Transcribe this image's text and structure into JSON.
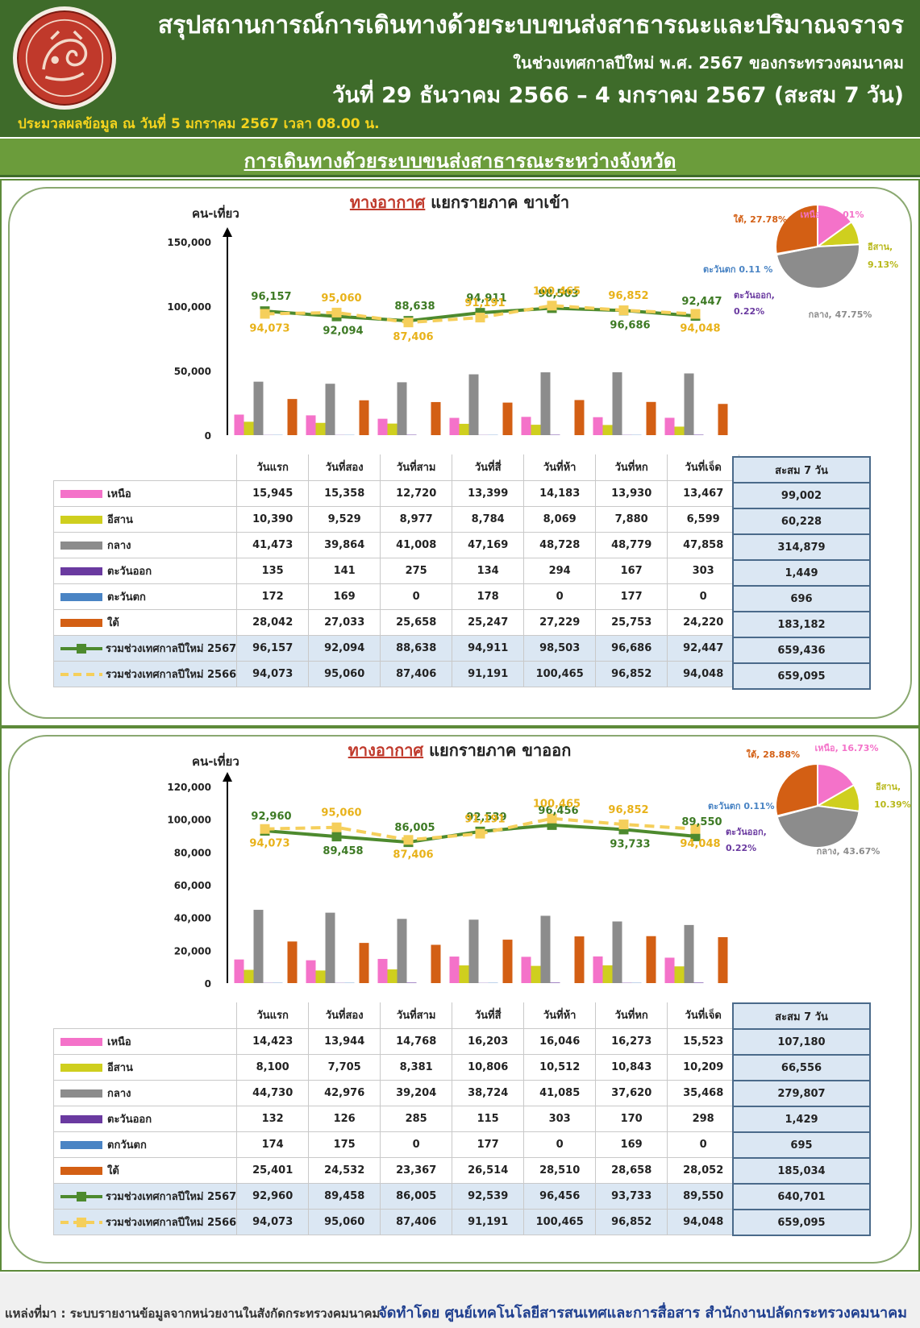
{
  "header": {
    "title": "สรุปสถานการณ์การเดินทางด้วยระบบขนส่งสาธารณะและปริมาณจราจร",
    "subtitle": "ในช่วงเทศกาลปีใหม่ พ.ศ. 2567 ของกระทรวงคมนาคม",
    "date_range": "วันที่ 29 ธันวาคม 2566 – 4 มกราคม 2567 (สะสม 7 วัน)",
    "processed": "ประมวลผลข้อมูล ณ วันที่  5 มกราคม 2567 เวลา 08.00 น."
  },
  "band": {
    "title": "การเดินทางด้วยระบบขนส่งสาธารณะระหว่างจังหวัด"
  },
  "colors": {
    "north": "#f472c9",
    "northeast": "#cfcf1e",
    "central": "#8c8c8c",
    "east": "#6a3aa0",
    "west": "#4a84c4",
    "south": "#d35f14",
    "line2567": "#4d8a2e",
    "line2566": "#f5cf5b"
  },
  "panels": [
    {
      "title_red": "ทางอากาศ",
      "title_rest": " แยกรายภาค ขาเข้า",
      "unit": "คน-เที่ยว",
      "days": [
        "วันแรก",
        "วันที่สอง",
        "วันที่สาม",
        "วันที่สี่",
        "วันที่ห้า",
        "วันที่หก",
        "วันที่เจ็ด"
      ],
      "sum_header": "สะสม 7 วัน",
      "rows": [
        {
          "label": "เหนือ",
          "key": "north",
          "values": [
            "15,945",
            "15,358",
            "12,720",
            "13,399",
            "14,183",
            "13,930",
            "13,467"
          ],
          "sum": "99,002"
        },
        {
          "label": "อีสาน",
          "key": "northeast",
          "values": [
            "10,390",
            "9,529",
            "8,977",
            "8,784",
            "8,069",
            "7,880",
            "6,599"
          ],
          "sum": "60,228"
        },
        {
          "label": "กลาง",
          "key": "central",
          "values": [
            "41,473",
            "39,864",
            "41,008",
            "47,169",
            "48,728",
            "48,779",
            "47,858"
          ],
          "sum": "314,879"
        },
        {
          "label": "ตะวันออก",
          "key": "east",
          "values": [
            "135",
            "141",
            "275",
            "134",
            "294",
            "167",
            "303"
          ],
          "sum": "1,449"
        },
        {
          "label": "ตะวันตก",
          "key": "west",
          "values": [
            "172",
            "169",
            "0",
            "178",
            "0",
            "177",
            "0"
          ],
          "sum": "696"
        },
        {
          "label": "ใต้",
          "key": "south",
          "values": [
            "28,042",
            "27,033",
            "25,658",
            "25,247",
            "27,229",
            "25,753",
            "24,220"
          ],
          "sum": "183,182"
        }
      ],
      "totals": [
        {
          "label": "รวมช่วงเทศกาลปีใหม่ 2567",
          "key": "line2567",
          "values": [
            "96,157",
            "92,094",
            "88,638",
            "94,911",
            "98,503",
            "96,686",
            "92,447"
          ],
          "sum": "659,436"
        },
        {
          "label": "รวมช่วงเทศกาลปีใหม่ 2566",
          "key": "line2566",
          "values": [
            "94,073",
            "95,060",
            "87,406",
            "91,191",
            "100,465",
            "96,852",
            "94,048"
          ],
          "sum": "659,095"
        }
      ],
      "pie_labels": [
        {
          "text": "ใต้, 27.78%",
          "color": "#d35f14"
        },
        {
          "text": "เหนือ, 15.01%",
          "color": "#f472c9"
        },
        {
          "text": "อีสาน,",
          "color": "#b8b81a"
        },
        {
          "text": "9.13%",
          "color": "#b8b81a"
        },
        {
          "text": "ตะวันตก 0.11 %",
          "color": "#4a84c4"
        },
        {
          "text": "ตะวันออก,",
          "color": "#6a3aa0"
        },
        {
          "text": "0.22%",
          "color": "#6a3aa0"
        },
        {
          "text": "กลาง, 47.75%",
          "color": "#8c8c8c"
        }
      ]
    },
    {
      "title_red": "ทางอากาศ",
      "title_rest": " แยกรายภาค ขาออก",
      "unit": "คน-เที่ยว",
      "days": [
        "วันแรก",
        "วันที่สอง",
        "วันที่สาม",
        "วันที่สี่",
        "วันที่ห้า",
        "วันที่หก",
        "วันที่เจ็ด"
      ],
      "sum_header": "สะสม 7 วัน",
      "rows": [
        {
          "label": "เหนือ",
          "key": "north",
          "values": [
            "14,423",
            "13,944",
            "14,768",
            "16,203",
            "16,046",
            "16,273",
            "15,523"
          ],
          "sum": "107,180"
        },
        {
          "label": "อีสาน",
          "key": "northeast",
          "values": [
            "8,100",
            "7,705",
            "8,381",
            "10,806",
            "10,512",
            "10,843",
            "10,209"
          ],
          "sum": "66,556"
        },
        {
          "label": "กลาง",
          "key": "central",
          "values": [
            "44,730",
            "42,976",
            "39,204",
            "38,724",
            "41,085",
            "37,620",
            "35,468"
          ],
          "sum": "279,807"
        },
        {
          "label": "ตะวันออก",
          "key": "east",
          "values": [
            "132",
            "126",
            "285",
            "115",
            "303",
            "170",
            "298"
          ],
          "sum": "1,429"
        },
        {
          "label": "ตกวันตก",
          "key": "west",
          "values": [
            "174",
            "175",
            "0",
            "177",
            "0",
            "169",
            "0"
          ],
          "sum": "695"
        },
        {
          "label": "ใต้",
          "key": "south",
          "values": [
            "25,401",
            "24,532",
            "23,367",
            "26,514",
            "28,510",
            "28,658",
            "28,052"
          ],
          "sum": "185,034"
        }
      ],
      "totals": [
        {
          "label": "รวมช่วงเทศกาลปีใหม่ 2567",
          "key": "line2567",
          "values": [
            "92,960",
            "89,458",
            "86,005",
            "92,539",
            "96,456",
            "93,733",
            "89,550"
          ],
          "sum": "640,701"
        },
        {
          "label": "รวมช่วงเทศกาลปีใหม่ 2566",
          "key": "line2566",
          "values": [
            "94,073",
            "95,060",
            "87,406",
            "91,191",
            "100,465",
            "96,852",
            "94,048"
          ],
          "sum": "659,095"
        }
      ],
      "pie_labels": [
        {
          "text": "ใต้, 28.88%",
          "color": "#d35f14"
        },
        {
          "text": "เหนือ, 16.73%",
          "color": "#f472c9"
        },
        {
          "text": "อีสาน,",
          "color": "#b8b81a"
        },
        {
          "text": "10.39%",
          "color": "#b8b81a"
        },
        {
          "text": "ตะวันตก 0.11%",
          "color": "#4a84c4"
        },
        {
          "text": "ตะวันออก,",
          "color": "#6a3aa0"
        },
        {
          "text": "0.22%",
          "color": "#6a3aa0"
        },
        {
          "text": "กลาง, 43.67%",
          "color": "#8c8c8c"
        }
      ]
    }
  ],
  "chart_data": [
    {
      "type": "bar",
      "title": "ทางอากาศ แยกรายภาค ขาเข้า",
      "ylabel": "คน-เที่ยว",
      "ylim": [
        0,
        150000
      ],
      "yticks": [
        "0",
        "50,000",
        "100,000",
        "150,000"
      ],
      "categories": [
        "วันแรก",
        "วันที่สอง",
        "วันที่สาม",
        "วันที่สี่",
        "วันที่ห้า",
        "วันที่หก",
        "วันที่เจ็ด"
      ],
      "series": [
        {
          "name": "เหนือ",
          "values": [
            15945,
            15358,
            12720,
            13399,
            14183,
            13930,
            13467
          ]
        },
        {
          "name": "อีสาน",
          "values": [
            10390,
            9529,
            8977,
            8784,
            8069,
            7880,
            6599
          ]
        },
        {
          "name": "กลาง",
          "values": [
            41473,
            39864,
            41008,
            47169,
            48728,
            48779,
            47858
          ]
        },
        {
          "name": "ตะวันออก",
          "values": [
            135,
            141,
            275,
            134,
            294,
            167,
            303
          ]
        },
        {
          "name": "ตะวันตก",
          "values": [
            172,
            169,
            0,
            178,
            0,
            177,
            0
          ]
        },
        {
          "name": "ใต้",
          "values": [
            28042,
            27033,
            25658,
            25247,
            27229,
            25753,
            24220
          ]
        }
      ],
      "lines": [
        {
          "name": "รวมช่วงเทศกาลปีใหม่ 2567",
          "values": [
            96157,
            92094,
            88638,
            94911,
            98503,
            96686,
            92447
          ],
          "labels": [
            "96,157",
            "92,094",
            "88,638",
            "94,911",
            "98,503",
            "96,686",
            "92,447"
          ]
        },
        {
          "name": "รวมช่วงเทศกาลปีใหม่ 2566",
          "values": [
            94073,
            95060,
            87406,
            91191,
            100465,
            96852,
            94048
          ],
          "labels": [
            "94,073",
            "95,060",
            "87,406",
            "91,191",
            "100,465",
            "96,852",
            "94,048"
          ]
        }
      ],
      "pie": {
        "values": [
          {
            "name": "เหนือ",
            "pct": 15.01
          },
          {
            "name": "อีสาน",
            "pct": 9.13
          },
          {
            "name": "กลาง",
            "pct": 47.75
          },
          {
            "name": "ตะวันออก",
            "pct": 0.22
          },
          {
            "name": "ตะวันตก",
            "pct": 0.11
          },
          {
            "name": "ใต้",
            "pct": 27.78
          }
        ]
      }
    },
    {
      "type": "bar",
      "title": "ทางอากาศ แยกรายภาค ขาออก",
      "ylabel": "คน-เที่ยว",
      "ylim": [
        0,
        120000
      ],
      "yticks": [
        "0",
        "20,000",
        "40,000",
        "60,000",
        "80,000",
        "100,000",
        "120,000"
      ],
      "categories": [
        "วันแรก",
        "วันที่สอง",
        "วันที่สาม",
        "วันที่สี่",
        "วันที่ห้า",
        "วันที่หก",
        "วันที่เจ็ด"
      ],
      "series": [
        {
          "name": "เหนือ",
          "values": [
            14423,
            13944,
            14768,
            16203,
            16046,
            16273,
            15523
          ]
        },
        {
          "name": "อีสาน",
          "values": [
            8100,
            7705,
            8381,
            10806,
            10512,
            10843,
            10209
          ]
        },
        {
          "name": "กลาง",
          "values": [
            44730,
            42976,
            39204,
            38724,
            41085,
            37620,
            35468
          ]
        },
        {
          "name": "ตะวันออก",
          "values": [
            132,
            126,
            285,
            115,
            303,
            170,
            298
          ]
        },
        {
          "name": "ตกวันตก",
          "values": [
            174,
            175,
            0,
            177,
            0,
            169,
            0
          ]
        },
        {
          "name": "ใต้",
          "values": [
            25401,
            24532,
            23367,
            26514,
            28510,
            28658,
            28052
          ]
        }
      ],
      "lines": [
        {
          "name": "รวมช่วงเทศกาลปีใหม่ 2567",
          "values": [
            92960,
            89458,
            86005,
            92539,
            96456,
            93733,
            89550
          ],
          "labels": [
            "92,960",
            "89,458",
            "86,005",
            "92,539",
            "96,456",
            "93,733",
            "89,550"
          ]
        },
        {
          "name": "รวมช่วงเทศกาลปีใหม่ 2566",
          "values": [
            94073,
            95060,
            87406,
            91191,
            100465,
            96852,
            94048
          ],
          "labels": [
            "94,073",
            "95,060",
            "87,406",
            "91,191",
            "100,465",
            "96,852",
            "94,048"
          ]
        }
      ],
      "pie": {
        "values": [
          {
            "name": "เหนือ",
            "pct": 16.73
          },
          {
            "name": "อีสาน",
            "pct": 10.39
          },
          {
            "name": "กลาง",
            "pct": 43.67
          },
          {
            "name": "ตะวันออก",
            "pct": 0.22
          },
          {
            "name": "ตะวันตก",
            "pct": 0.11
          },
          {
            "name": "ใต้",
            "pct": 28.88
          }
        ]
      }
    }
  ],
  "footer": {
    "source": "แหล่งที่มา : ระบบรายงานข้อมูลจากหน่วยงานในสังกัดกระทรวงคมนาคม",
    "credit": "จัดทำโดย ศูนย์เทคโนโลยีสารสนเทศและการสื่อสาร สำนักงานปลัดกระทรวงคมนาคม"
  }
}
